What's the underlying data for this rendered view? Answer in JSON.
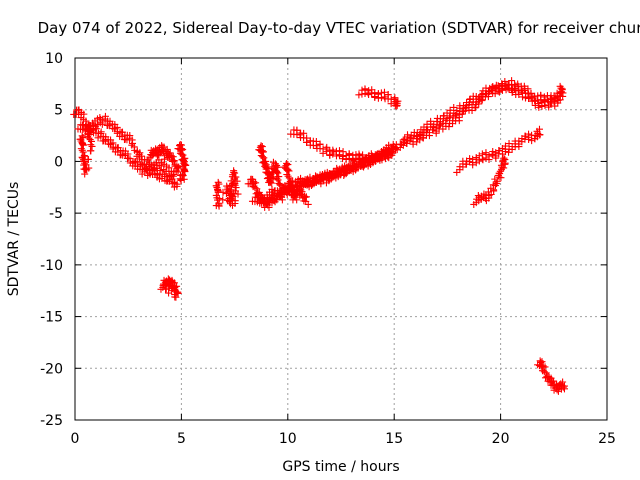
{
  "chart_data": {
    "type": "scatter",
    "title": "Day 074 of 2022, Sidereal Day-to-day VTEC variation (SDTVAR) for receiver chur",
    "xlabel": "GPS time / hours",
    "ylabel": "SDTVAR / TECUs",
    "xlim": [
      0,
      25
    ],
    "ylim": [
      -25,
      10
    ],
    "xticks": [
      0,
      5,
      10,
      15,
      20,
      25
    ],
    "yticks": [
      -25,
      -20,
      -15,
      -10,
      -5,
      0,
      5,
      10
    ],
    "grid": true,
    "marker": "+",
    "color": "#ff0000",
    "segments": [
      {
        "name": "arc-1",
        "points": [
          [
            0.0,
            4.9
          ],
          [
            0.3,
            4.5
          ],
          [
            0.6,
            3.5
          ],
          [
            0.9,
            3.0
          ],
          [
            1.2,
            2.5
          ],
          [
            1.5,
            2.0
          ],
          [
            1.8,
            1.5
          ],
          [
            2.1,
            1.0
          ],
          [
            2.4,
            0.5
          ],
          [
            2.7,
            0.0
          ],
          [
            3.0,
            -0.5
          ],
          [
            3.3,
            -1.0
          ],
          [
            3.6,
            -1.0
          ],
          [
            3.9,
            -1.2
          ],
          [
            4.2,
            -1.5
          ],
          [
            4.5,
            -2.0
          ],
          [
            4.8,
            -2.2
          ]
        ]
      },
      {
        "name": "arc-2",
        "points": [
          [
            0.2,
            3.5
          ],
          [
            0.5,
            3.0
          ],
          [
            0.8,
            3.5
          ],
          [
            1.1,
            3.8
          ],
          [
            1.4,
            4.0
          ],
          [
            1.7,
            3.5
          ],
          [
            2.0,
            3.0
          ],
          [
            2.3,
            2.5
          ],
          [
            2.6,
            2.0
          ],
          [
            2.9,
            1.0
          ],
          [
            3.2,
            0.0
          ],
          [
            3.5,
            -0.5
          ],
          [
            3.8,
            -0.5
          ],
          [
            4.1,
            0.0
          ],
          [
            4.4,
            -1.0
          ],
          [
            4.7,
            -1.5
          ]
        ]
      },
      {
        "name": "arc-3",
        "points": [
          [
            0.3,
            2.5
          ],
          [
            0.35,
            1.5
          ],
          [
            0.4,
            0.5
          ],
          [
            0.45,
            -0.5
          ],
          [
            0.5,
            -1.0
          ],
          [
            0.8,
            1.5
          ],
          [
            0.6,
            2.8
          ],
          [
            0.7,
            3.2
          ]
        ]
      },
      {
        "name": "arc-4",
        "points": [
          [
            3.5,
            0.5
          ],
          [
            3.7,
            0.8
          ],
          [
            3.9,
            1.0
          ],
          [
            4.1,
            1.2
          ],
          [
            4.3,
            0.8
          ],
          [
            4.5,
            0.5
          ],
          [
            4.7,
            -0.2
          ],
          [
            4.9,
            -1.0
          ]
        ]
      },
      {
        "name": "arc-5",
        "points": [
          [
            4.9,
            1.6
          ],
          [
            5.0,
            1.0
          ],
          [
            5.1,
            0.3
          ],
          [
            5.15,
            -0.5
          ],
          [
            5.1,
            -1.2
          ],
          [
            5.0,
            -1.8
          ]
        ]
      },
      {
        "name": "arc-6",
        "points": [
          [
            4.1,
            -12.0
          ],
          [
            4.3,
            -11.8
          ],
          [
            4.5,
            -11.5
          ],
          [
            4.7,
            -12.2
          ],
          [
            4.8,
            -13.0
          ],
          [
            4.2,
            -12.1
          ],
          [
            4.6,
            -11.9
          ]
        ]
      },
      {
        "name": "arc-7",
        "points": [
          [
            6.7,
            -2.0
          ],
          [
            6.7,
            -3.0
          ],
          [
            6.7,
            -4.2
          ],
          [
            7.2,
            -2.5
          ],
          [
            7.3,
            -3.5
          ],
          [
            7.4,
            -2.0
          ],
          [
            7.5,
            -1.0
          ],
          [
            7.6,
            -2.8
          ],
          [
            7.2,
            -4.0
          ],
          [
            7.5,
            -3.8
          ]
        ]
      },
      {
        "name": "arc-8",
        "points": [
          [
            8.2,
            -1.8
          ],
          [
            8.4,
            -2.2
          ],
          [
            8.6,
            -3.0
          ],
          [
            8.8,
            -3.8
          ],
          [
            9.0,
            -4.2
          ],
          [
            9.2,
            -3.8
          ],
          [
            9.4,
            -3.5
          ],
          [
            9.6,
            -3.0
          ],
          [
            9.8,
            -2.8
          ],
          [
            10.0,
            -2.5
          ],
          [
            10.3,
            -2.2
          ],
          [
            10.6,
            -2.0
          ],
          [
            10.9,
            -2.0
          ],
          [
            11.2,
            -1.8
          ],
          [
            11.5,
            -1.5
          ],
          [
            11.8,
            -1.5
          ],
          [
            12.1,
            -1.2
          ],
          [
            12.4,
            -1.0
          ],
          [
            12.7,
            -0.8
          ],
          [
            13.0,
            -0.5
          ],
          [
            13.3,
            -0.2
          ],
          [
            13.6,
            0.0
          ],
          [
            13.9,
            0.3
          ],
          [
            14.2,
            0.6
          ],
          [
            14.5,
            0.8
          ],
          [
            14.8,
            1.2
          ],
          [
            15.1,
            1.5
          ]
        ]
      },
      {
        "name": "arc-9",
        "points": [
          [
            8.4,
            -3.5
          ],
          [
            8.7,
            -4.0
          ],
          [
            9.0,
            -3.5
          ],
          [
            9.3,
            -3.0
          ],
          [
            9.6,
            -3.5
          ],
          [
            9.9,
            -3.0
          ],
          [
            10.2,
            -2.8
          ],
          [
            10.5,
            -2.5
          ],
          [
            10.8,
            -2.2
          ],
          [
            11.1,
            -2.0
          ],
          [
            11.4,
            -1.8
          ],
          [
            11.7,
            -1.8
          ],
          [
            12.0,
            -1.5
          ],
          [
            12.3,
            -1.2
          ],
          [
            12.6,
            -1.0
          ],
          [
            12.9,
            -0.8
          ],
          [
            13.2,
            -0.5
          ],
          [
            13.5,
            -0.3
          ],
          [
            13.8,
            0.0
          ],
          [
            14.1,
            0.2
          ],
          [
            14.4,
            0.5
          ],
          [
            14.7,
            0.8
          ],
          [
            15.0,
            1.0
          ]
        ]
      },
      {
        "name": "arc-10",
        "points": [
          [
            8.7,
            1.5
          ],
          [
            8.8,
            0.8
          ],
          [
            8.9,
            0.0
          ],
          [
            9.0,
            -0.8
          ],
          [
            9.1,
            -1.5
          ],
          [
            9.2,
            -2.0
          ],
          [
            9.3,
            -1.0
          ],
          [
            9.4,
            -0.2
          ],
          [
            9.5,
            -1.2
          ],
          [
            9.6,
            -2.2
          ]
        ]
      },
      {
        "name": "arc-11",
        "points": [
          [
            9.9,
            -0.2
          ],
          [
            10.0,
            -1.0
          ],
          [
            10.1,
            -2.0
          ],
          [
            10.2,
            -3.0
          ],
          [
            10.3,
            -3.5
          ],
          [
            10.5,
            -3.0
          ],
          [
            10.7,
            -3.2
          ],
          [
            10.9,
            -3.8
          ]
        ]
      },
      {
        "name": "arc-12",
        "points": [
          [
            10.2,
            3.0
          ],
          [
            10.6,
            2.5
          ],
          [
            11.0,
            2.0
          ],
          [
            11.4,
            1.5
          ],
          [
            11.8,
            1.0
          ],
          [
            12.2,
            0.8
          ],
          [
            12.6,
            0.6
          ],
          [
            13.0,
            0.5
          ],
          [
            13.4,
            0.3
          ],
          [
            13.8,
            0.2
          ],
          [
            14.2,
            0.3
          ],
          [
            14.6,
            0.6
          ],
          [
            15.0,
            1.0
          ]
        ]
      },
      {
        "name": "arc-13",
        "points": [
          [
            13.4,
            6.8
          ],
          [
            13.8,
            6.6
          ],
          [
            14.2,
            6.5
          ],
          [
            14.6,
            6.3
          ],
          [
            15.0,
            5.8
          ],
          [
            15.2,
            5.5
          ]
        ]
      },
      {
        "name": "arc-14",
        "points": [
          [
            15.2,
            1.5
          ],
          [
            15.6,
            1.8
          ],
          [
            16.0,
            2.2
          ],
          [
            16.4,
            2.5
          ],
          [
            16.8,
            3.0
          ],
          [
            17.2,
            3.3
          ],
          [
            17.6,
            3.8
          ],
          [
            18.0,
            4.3
          ],
          [
            18.4,
            5.0
          ],
          [
            18.8,
            5.5
          ],
          [
            19.2,
            6.2
          ],
          [
            19.6,
            6.8
          ],
          [
            20.0,
            7.2
          ],
          [
            20.4,
            7.5
          ],
          [
            20.8,
            7.2
          ],
          [
            21.2,
            6.8
          ],
          [
            21.6,
            6.3
          ],
          [
            22.0,
            6.0
          ],
          [
            22.4,
            6.0
          ],
          [
            22.8,
            6.5
          ],
          [
            22.9,
            7.2
          ]
        ]
      },
      {
        "name": "arc-15",
        "points": [
          [
            15.4,
            2.0
          ],
          [
            15.8,
            2.3
          ],
          [
            16.2,
            2.8
          ],
          [
            16.6,
            3.3
          ],
          [
            17.0,
            3.8
          ],
          [
            17.4,
            4.3
          ],
          [
            17.8,
            4.8
          ],
          [
            18.2,
            5.2
          ],
          [
            18.6,
            5.8
          ],
          [
            19.0,
            6.3
          ],
          [
            19.4,
            6.8
          ],
          [
            19.8,
            7.0
          ],
          [
            20.2,
            7.2
          ],
          [
            20.6,
            7.0
          ],
          [
            21.0,
            6.6
          ],
          [
            21.4,
            6.0
          ],
          [
            21.8,
            5.6
          ],
          [
            22.2,
            5.5
          ],
          [
            22.6,
            5.8
          ],
          [
            22.9,
            6.5
          ]
        ]
      },
      {
        "name": "arc-16",
        "points": [
          [
            18.0,
            -0.7
          ],
          [
            18.4,
            -0.2
          ],
          [
            18.8,
            0.2
          ],
          [
            19.2,
            0.4
          ],
          [
            19.6,
            0.6
          ],
          [
            20.0,
            0.9
          ],
          [
            20.4,
            1.3
          ],
          [
            20.8,
            1.8
          ],
          [
            21.2,
            2.2
          ],
          [
            21.6,
            2.5
          ],
          [
            21.9,
            2.8
          ]
        ]
      },
      {
        "name": "arc-17",
        "points": [
          [
            18.8,
            -3.8
          ],
          [
            19.1,
            -3.6
          ],
          [
            19.4,
            -3.3
          ],
          [
            19.7,
            -2.5
          ],
          [
            19.9,
            -1.5
          ],
          [
            20.1,
            -0.5
          ],
          [
            20.2,
            0.3
          ]
        ]
      },
      {
        "name": "arc-18",
        "points": [
          [
            21.8,
            -19.3
          ],
          [
            22.0,
            -20.0
          ],
          [
            22.2,
            -20.8
          ],
          [
            22.4,
            -21.4
          ],
          [
            22.6,
            -21.9
          ],
          [
            22.8,
            -21.8
          ],
          [
            23.0,
            -21.6
          ]
        ]
      }
    ]
  }
}
